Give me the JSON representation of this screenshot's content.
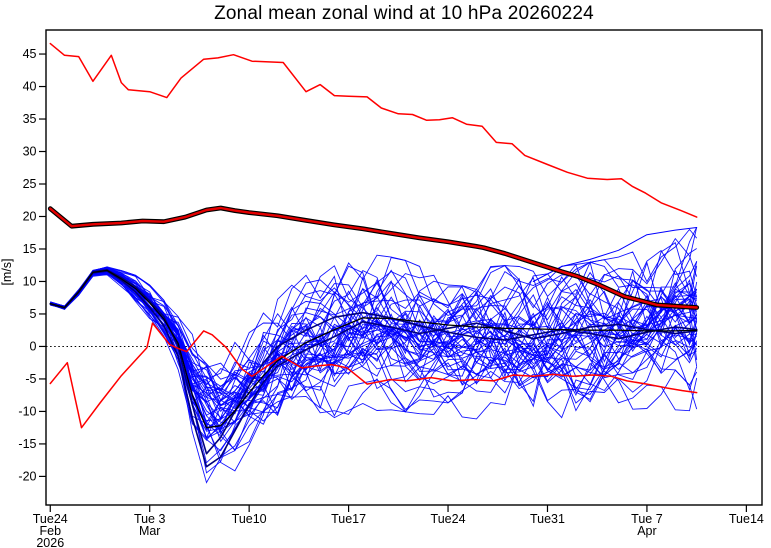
{
  "chart_data": {
    "type": "line",
    "title": "Zonal mean zonal wind at 10 hPa 20260224",
    "ylabel": "[m/s]",
    "xlim_days": [
      -0.3,
      50.1
    ],
    "ylim": [
      -24.4,
      48.7
    ],
    "grid": false,
    "legend": "none",
    "y_ticks": [
      -20,
      -15,
      -10,
      -5,
      0,
      5,
      10,
      15,
      20,
      25,
      30,
      35,
      40,
      45
    ],
    "x_ticks": [
      {
        "day": 0,
        "labels": [
          "Tue24",
          "Feb",
          "2026"
        ]
      },
      {
        "day": 7,
        "labels": [
          "Tue 3",
          "Mar"
        ]
      },
      {
        "day": 14,
        "labels": [
          "Tue10"
        ]
      },
      {
        "day": 21,
        "labels": [
          "Tue17"
        ]
      },
      {
        "day": 28,
        "labels": [
          "Tue24"
        ]
      },
      {
        "day": 35,
        "labels": [
          "Tue31"
        ]
      },
      {
        "day": 42,
        "labels": [
          "Tue 7",
          "Apr"
        ]
      },
      {
        "day": 49,
        "labels": [
          "Tue14"
        ]
      }
    ],
    "zero_line": {
      "value": 0,
      "style": "dotted",
      "color": "#000000"
    },
    "colors": {
      "ensemble_member": "#0000ff",
      "control_forecast": "#000080",
      "ensemble_mean": "#000000",
      "climatology_extreme": "#ff0000",
      "climatology_mean_core": "#e60000",
      "climatology_mean_edge": "#000000"
    },
    "series": [
      {
        "name": "climatological-maximum",
        "color": "#ff0000",
        "width": 1.5,
        "days": [
          0,
          1,
          2,
          3,
          4.3,
          5,
          5.5,
          7,
          8.2,
          9.2,
          10.8,
          11.8,
          12.9,
          14.2,
          16.4,
          18,
          19,
          20,
          21,
          22.3,
          23.3,
          24.5,
          25.5,
          26.5,
          27.4,
          28.3,
          29.3,
          30.4,
          31.4,
          32.5,
          33.4,
          35,
          36.4,
          37.8,
          39.2,
          40.2,
          41,
          41.9,
          43,
          44.4,
          45.5
        ],
        "values": [
          46.6,
          44.8,
          44.6,
          40.8,
          44.8,
          40.6,
          39.5,
          39.2,
          38.3,
          41.3,
          44.2,
          44.4,
          44.9,
          43.9,
          43.7,
          39.2,
          40.3,
          38.6,
          38.5,
          38.4,
          36.7,
          35.8,
          35.7,
          34.8,
          34.9,
          35.2,
          34.2,
          33.9,
          31.4,
          31.2,
          29.4,
          28.0,
          26.8,
          25.9,
          25.7,
          25.8,
          24.6,
          23.6,
          22.1,
          20.9,
          19.9
        ]
      },
      {
        "name": "climatological-mean",
        "color": "#e60000",
        "edge_color": "#000000",
        "width": 2.4,
        "edge_width": 4.8,
        "days": [
          0,
          1.5,
          3,
          5,
          6.5,
          8,
          9.5,
          11,
          12,
          13,
          14,
          16,
          18,
          20,
          22,
          24,
          26,
          28,
          30,
          30.5,
          32,
          34,
          36,
          37.1,
          38.5,
          40.4,
          42.7,
          44,
          45.5
        ],
        "values": [
          21.2,
          18.5,
          18.8,
          19.0,
          19.3,
          19.2,
          19.9,
          21.0,
          21.3,
          20.9,
          20.6,
          20.1,
          19.4,
          18.7,
          18.1,
          17.4,
          16.7,
          16.1,
          15.4,
          15.2,
          14.3,
          12.9,
          11.5,
          10.8,
          9.6,
          7.7,
          6.4,
          6.2,
          6.0
        ]
      },
      {
        "name": "climatological-minimum",
        "color": "#ff0000",
        "width": 1.5,
        "days": [
          0,
          1.2,
          2.2,
          3.5,
          5,
          6.8,
          7.2,
          8.4,
          9,
          9.6,
          10.8,
          11.4,
          12.4,
          13.5,
          14.2,
          16.3,
          17.7,
          18.8,
          19.8,
          20.9,
          22.3,
          23.9,
          25.1,
          26.8,
          28.3,
          29.8,
          31.2,
          32.6,
          34,
          35.4,
          36.8,
          38.2,
          39.5,
          40.6,
          42,
          43.4,
          44.5,
          45.5
        ],
        "values": [
          -5.7,
          -2.5,
          -12.5,
          -8.7,
          -4.5,
          -0.2,
          3.6,
          0.3,
          -0.3,
          -0.8,
          2.4,
          1.8,
          -0.2,
          -3.5,
          -4.6,
          -1.5,
          -3.3,
          -3.0,
          -2.8,
          -3.3,
          -5.8,
          -5.1,
          -5.3,
          -4.8,
          -5.3,
          -5.1,
          -5.3,
          -4.4,
          -4.6,
          -4.3,
          -4.6,
          -4.4,
          -4.6,
          -5.3,
          -5.8,
          -6.4,
          -6.8,
          -7.1
        ]
      },
      {
        "name": "control-forecast-1",
        "color": "#000080",
        "width": 1.6,
        "days": [
          0,
          1,
          2,
          3,
          4,
          5,
          6,
          7,
          8,
          9,
          10,
          11,
          12,
          13,
          14,
          15,
          16,
          18,
          20,
          22,
          24,
          26,
          28,
          30,
          32,
          34,
          36,
          38,
          40,
          42,
          44,
          45.5
        ],
        "values": [
          6.6,
          6.0,
          8.5,
          11.5,
          11.8,
          10.6,
          9.2,
          7.0,
          4.6,
          0.0,
          -9.0,
          -16.5,
          -14.0,
          -10.0,
          -6.0,
          -2.5,
          0.0,
          2.5,
          4.5,
          5.2,
          4.4,
          3.2,
          2.2,
          1.4,
          1.0,
          1.8,
          2.6,
          2.0,
          1.2,
          2.2,
          3.0,
          2.6
        ]
      },
      {
        "name": "control-forecast-2",
        "color": "#000080",
        "width": 1.6,
        "days": [
          0,
          1,
          2,
          3,
          4,
          5,
          6,
          7,
          8,
          9,
          10,
          11,
          12,
          13,
          14,
          15,
          16,
          18,
          20,
          22,
          24,
          26,
          28,
          30,
          32,
          34,
          36,
          38,
          40,
          42,
          44,
          45.5
        ],
        "values": [
          6.5,
          5.9,
          8.3,
          11.3,
          11.6,
          10.2,
          8.4,
          6.0,
          3.2,
          -1.5,
          -11,
          -18.5,
          -17,
          -13,
          -9,
          -5.5,
          -3,
          -0.5,
          1.5,
          3.8,
          3.0,
          2.0,
          2.8,
          3.6,
          2.4,
          1.2,
          2.0,
          3.0,
          3.4,
          2.6,
          2.0,
          2.4
        ]
      },
      {
        "name": "ensemble-mean",
        "color": "#000000",
        "width": 1.3,
        "days": [
          0,
          1,
          2,
          3,
          4,
          5,
          6,
          7,
          8,
          9,
          10,
          11,
          12,
          13,
          14,
          15,
          16,
          18,
          20,
          22,
          24,
          26,
          28,
          30,
          32,
          34,
          36,
          38,
          40,
          42,
          44,
          45.5
        ],
        "values": [
          6.6,
          6.0,
          8.4,
          11.4,
          11.7,
          10.4,
          8.9,
          6.7,
          4.2,
          0.5,
          -7.5,
          -12.5,
          -12.2,
          -9.9,
          -7.1,
          -4.5,
          -2.2,
          0.6,
          2.6,
          4.4,
          4.3,
          3.8,
          3.3,
          3.0,
          2.8,
          2.7,
          2.6,
          2.5,
          2.5,
          2.4,
          2.4,
          2.5
        ]
      },
      {
        "name": "highlight-member",
        "color": "#0000ff",
        "width": 1,
        "days": [
          34,
          36,
          38,
          40,
          42,
          44,
          45.5
        ],
        "values": [
          10,
          12.3,
          13.4,
          14.8,
          17.2,
          17.9,
          18.3
        ]
      }
    ],
    "ensemble": {
      "name": "ensemble-members",
      "color": "#0000ff",
      "member_count": 50,
      "knot_days": [
        0,
        1,
        2,
        3,
        4,
        5,
        6,
        7,
        8,
        9,
        10,
        11,
        12,
        13,
        14,
        15,
        16,
        18,
        20,
        22,
        24,
        26,
        28,
        30,
        32,
        34,
        36,
        38,
        40,
        42,
        44,
        45.5
      ],
      "envelope_low": [
        6.3,
        5.6,
        7.8,
        10.8,
        10.9,
        8.9,
        6.6,
        3.9,
        0.9,
        -3.5,
        -14,
        -20.8,
        -20.6,
        -19,
        -17,
        -15.2,
        -13.8,
        -12,
        -10.8,
        -9.8,
        -9.6,
        -10.2,
        -10.4,
        -11,
        -10.6,
        -11.8,
        -10.8,
        -10.4,
        -9.6,
        -9.4,
        -9.6,
        -9.8
      ],
      "envelope_high": [
        6.9,
        6.4,
        8.9,
        11.9,
        12.4,
        11.8,
        10.8,
        9.3,
        7.4,
        5.2,
        1.8,
        0.5,
        -0.6,
        0.6,
        2.2,
        5,
        8,
        10.8,
        12.5,
        14.2,
        13.6,
        12.6,
        12.2,
        12,
        12.3,
        12,
        12.2,
        12.8,
        13.6,
        15.2,
        17.2,
        18.2
      ],
      "median": [
        6.6,
        6.0,
        8.4,
        11.4,
        11.7,
        10.4,
        8.8,
        6.6,
        4.1,
        0.6,
        -6.5,
        -11.5,
        -12,
        -9.8,
        -7,
        -4.4,
        -2.2,
        0.6,
        2.6,
        4.6,
        4.2,
        3.6,
        3.1,
        2.8,
        2.6,
        2.5,
        2.4,
        2.3,
        2.3,
        2.2,
        2.2,
        2.3
      ]
    }
  }
}
